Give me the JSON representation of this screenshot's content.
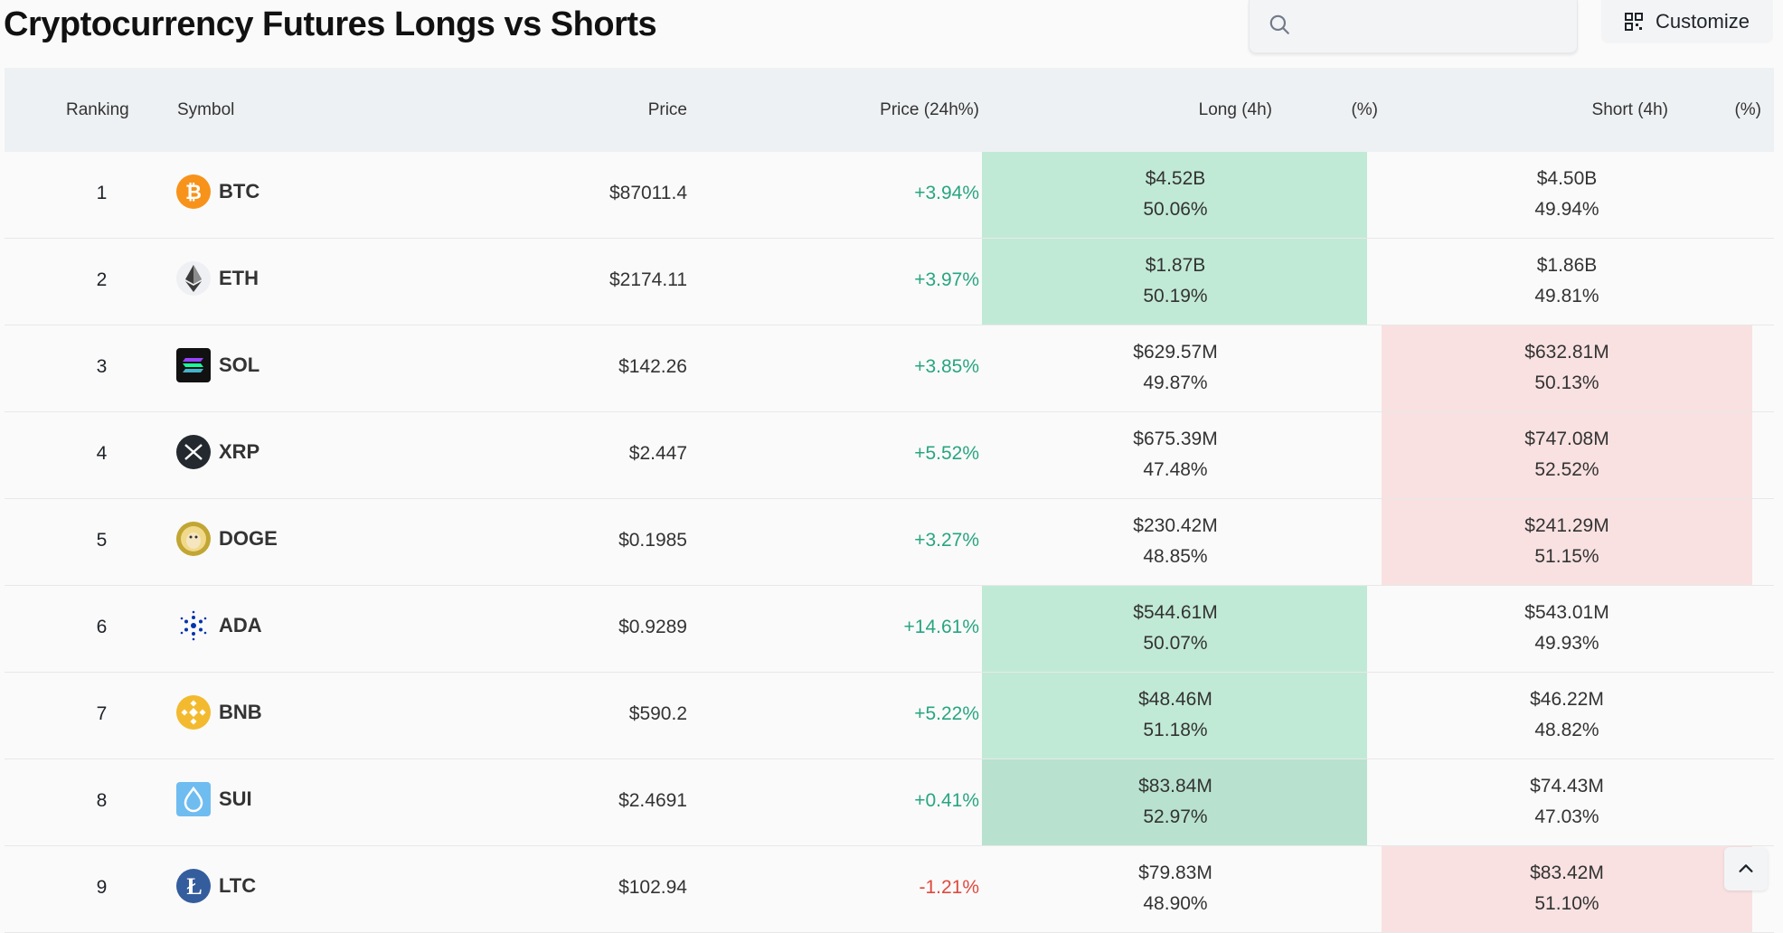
{
  "title": "Cryptocurrency Futures Longs vs Shorts",
  "search": {
    "placeholder": "",
    "value": ""
  },
  "customize_label": "Customize",
  "columns": {
    "ranking": "Ranking",
    "symbol": "Symbol",
    "price": "Price",
    "change": "Price (24h%)",
    "long": "Long (4h)",
    "long_pct": "(%)",
    "short": "Short (4h)",
    "short_pct": "(%)"
  },
  "colors": {
    "positive": "#28a580",
    "negative": "#e0493e",
    "long_highlight": "#c1ead6",
    "short_highlight": "#f9e1e1"
  },
  "rows": [
    {
      "rank": "1",
      "symbol": "BTC",
      "icon": "btc-icon",
      "price": "$87011.4",
      "change": "+3.94%",
      "change_dir": "pos",
      "long": "$4.52B",
      "long_pct": "50.06%",
      "short": "$4.50B",
      "short_pct": "49.94%",
      "dominant": "long"
    },
    {
      "rank": "2",
      "symbol": "ETH",
      "icon": "eth-icon",
      "price": "$2174.11",
      "change": "+3.97%",
      "change_dir": "pos",
      "long": "$1.87B",
      "long_pct": "50.19%",
      "short": "$1.86B",
      "short_pct": "49.81%",
      "dominant": "long"
    },
    {
      "rank": "3",
      "symbol": "SOL",
      "icon": "sol-icon",
      "price": "$142.26",
      "change": "+3.85%",
      "change_dir": "pos",
      "long": "$629.57M",
      "long_pct": "49.87%",
      "short": "$632.81M",
      "short_pct": "50.13%",
      "dominant": "short"
    },
    {
      "rank": "4",
      "symbol": "XRP",
      "icon": "xrp-icon",
      "price": "$2.447",
      "change": "+5.52%",
      "change_dir": "pos",
      "long": "$675.39M",
      "long_pct": "47.48%",
      "short": "$747.08M",
      "short_pct": "52.52%",
      "dominant": "short"
    },
    {
      "rank": "5",
      "symbol": "DOGE",
      "icon": "doge-icon",
      "price": "$0.1985",
      "change": "+3.27%",
      "change_dir": "pos",
      "long": "$230.42M",
      "long_pct": "48.85%",
      "short": "$241.29M",
      "short_pct": "51.15%",
      "dominant": "short"
    },
    {
      "rank": "6",
      "symbol": "ADA",
      "icon": "ada-icon",
      "price": "$0.9289",
      "change": "+14.61%",
      "change_dir": "pos",
      "long": "$544.61M",
      "long_pct": "50.07%",
      "short": "$543.01M",
      "short_pct": "49.93%",
      "dominant": "long"
    },
    {
      "rank": "7",
      "symbol": "BNB",
      "icon": "bnb-icon",
      "price": "$590.2",
      "change": "+5.22%",
      "change_dir": "pos",
      "long": "$48.46M",
      "long_pct": "51.18%",
      "short": "$46.22M",
      "short_pct": "48.82%",
      "dominant": "long"
    },
    {
      "rank": "8",
      "symbol": "SUI",
      "icon": "sui-icon",
      "price": "$2.4691",
      "change": "+0.41%",
      "change_dir": "pos",
      "long": "$83.84M",
      "long_pct": "52.97%",
      "short": "$74.43M",
      "short_pct": "47.03%",
      "dominant": "long"
    },
    {
      "rank": "9",
      "symbol": "LTC",
      "icon": "ltc-icon",
      "price": "$102.94",
      "change": "-1.21%",
      "change_dir": "neg",
      "long": "$79.83M",
      "long_pct": "48.90%",
      "short": "$83.42M",
      "short_pct": "51.10%",
      "dominant": "short"
    }
  ]
}
